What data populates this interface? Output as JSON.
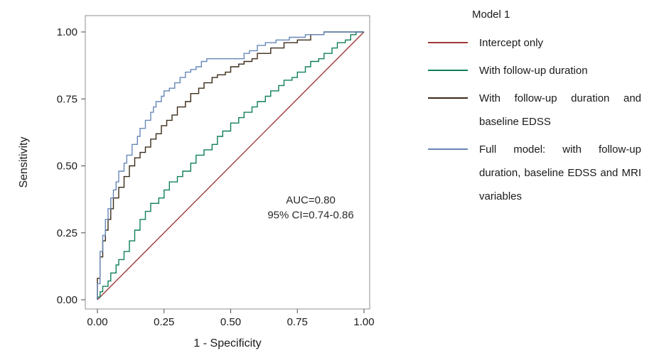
{
  "chart_data": {
    "type": "line",
    "title": "",
    "xlabel": "1 - Specificity",
    "ylabel": "Sensitivity",
    "xlim": [
      0,
      1
    ],
    "ylim": [
      0,
      1
    ],
    "grid": false,
    "legend_position": "right",
    "legend_title": "Model 1",
    "xtick_values": [
      0,
      0.25,
      0.5,
      0.75,
      1
    ],
    "xtick_labels": [
      "0.00",
      "0.25",
      "0.50",
      "0.75",
      "1.00"
    ],
    "ytick_values": [
      0,
      0.25,
      0.5,
      0.75,
      1
    ],
    "ytick_labels": [
      "0.00",
      "0.25",
      "0.50",
      "0.75",
      "1.00"
    ],
    "annotation": {
      "lines": [
        "AUC=0.80",
        "95% CI=0.74-0.86"
      ],
      "x": 0.8,
      "y": 0.36
    },
    "frame_color": "#8f8f8f",
    "tick_color": "#4a4a4a",
    "text_color": "#1a1a1a",
    "series": [
      {
        "name": "Intercept only",
        "color": "#9e3a38",
        "step": false,
        "points": [
          [
            0,
            0
          ],
          [
            1,
            1
          ]
        ]
      },
      {
        "name": "With follow-up duration",
        "color": "#0f7f5a",
        "step": true,
        "points": [
          [
            0,
            0
          ],
          [
            0.01,
            0.01
          ],
          [
            0.02,
            0.03
          ],
          [
            0.04,
            0.05
          ],
          [
            0.05,
            0.07
          ],
          [
            0.07,
            0.1
          ],
          [
            0.08,
            0.13
          ],
          [
            0.1,
            0.15
          ],
          [
            0.12,
            0.18
          ],
          [
            0.14,
            0.22
          ],
          [
            0.16,
            0.26
          ],
          [
            0.18,
            0.3
          ],
          [
            0.2,
            0.33
          ],
          [
            0.23,
            0.36
          ],
          [
            0.25,
            0.38
          ],
          [
            0.27,
            0.41
          ],
          [
            0.3,
            0.44
          ],
          [
            0.32,
            0.46
          ],
          [
            0.35,
            0.48
          ],
          [
            0.37,
            0.51
          ],
          [
            0.4,
            0.54
          ],
          [
            0.43,
            0.56
          ],
          [
            0.45,
            0.58
          ],
          [
            0.47,
            0.61
          ],
          [
            0.5,
            0.63
          ],
          [
            0.53,
            0.66
          ],
          [
            0.55,
            0.68
          ],
          [
            0.58,
            0.7
          ],
          [
            0.6,
            0.72
          ],
          [
            0.63,
            0.74
          ],
          [
            0.65,
            0.76
          ],
          [
            0.68,
            0.78
          ],
          [
            0.7,
            0.8
          ],
          [
            0.73,
            0.82
          ],
          [
            0.75,
            0.83
          ],
          [
            0.78,
            0.85
          ],
          [
            0.8,
            0.87
          ],
          [
            0.83,
            0.89
          ],
          [
            0.85,
            0.9
          ],
          [
            0.88,
            0.92
          ],
          [
            0.9,
            0.94
          ],
          [
            0.93,
            0.96
          ],
          [
            0.95,
            0.97
          ],
          [
            0.97,
            0.99
          ],
          [
            1,
            1
          ]
        ]
      },
      {
        "name": "With follow-up duration and baseline EDSS",
        "color": "#3a2a18",
        "step": true,
        "points": [
          [
            0,
            0
          ],
          [
            0.01,
            0.08
          ],
          [
            0.01,
            0.12
          ],
          [
            0.02,
            0.16
          ],
          [
            0.03,
            0.22
          ],
          [
            0.04,
            0.26
          ],
          [
            0.05,
            0.3
          ],
          [
            0.06,
            0.34
          ],
          [
            0.08,
            0.38
          ],
          [
            0.1,
            0.42
          ],
          [
            0.12,
            0.46
          ],
          [
            0.14,
            0.5
          ],
          [
            0.16,
            0.53
          ],
          [
            0.18,
            0.55
          ],
          [
            0.2,
            0.57
          ],
          [
            0.22,
            0.6
          ],
          [
            0.24,
            0.62
          ],
          [
            0.26,
            0.65
          ],
          [
            0.28,
            0.67
          ],
          [
            0.3,
            0.69
          ],
          [
            0.33,
            0.72
          ],
          [
            0.35,
            0.74
          ],
          [
            0.38,
            0.77
          ],
          [
            0.4,
            0.79
          ],
          [
            0.43,
            0.81
          ],
          [
            0.45,
            0.83
          ],
          [
            0.48,
            0.84
          ],
          [
            0.5,
            0.85
          ],
          [
            0.53,
            0.87
          ],
          [
            0.55,
            0.88
          ],
          [
            0.58,
            0.89
          ],
          [
            0.6,
            0.9
          ],
          [
            0.65,
            0.92
          ],
          [
            0.7,
            0.94
          ],
          [
            0.75,
            0.96
          ],
          [
            0.8,
            0.97
          ],
          [
            0.85,
            0.99
          ],
          [
            0.9,
            1.0
          ],
          [
            1,
            1
          ]
        ]
      },
      {
        "name": "Full model: with follow-up duration, baseline EDSS and MRI variables",
        "color": "#6787b8",
        "step": true,
        "points": [
          [
            0,
            0
          ],
          [
            0.01,
            0.06
          ],
          [
            0.01,
            0.12
          ],
          [
            0.02,
            0.18
          ],
          [
            0.03,
            0.24
          ],
          [
            0.04,
            0.3
          ],
          [
            0.05,
            0.34
          ],
          [
            0.06,
            0.38
          ],
          [
            0.07,
            0.41
          ],
          [
            0.08,
            0.44
          ],
          [
            0.1,
            0.48
          ],
          [
            0.11,
            0.51
          ],
          [
            0.13,
            0.54
          ],
          [
            0.15,
            0.58
          ],
          [
            0.16,
            0.61
          ],
          [
            0.18,
            0.64
          ],
          [
            0.2,
            0.67
          ],
          [
            0.21,
            0.7
          ],
          [
            0.22,
            0.72
          ],
          [
            0.24,
            0.74
          ],
          [
            0.25,
            0.76
          ],
          [
            0.27,
            0.78
          ],
          [
            0.29,
            0.79
          ],
          [
            0.31,
            0.81
          ],
          [
            0.33,
            0.83
          ],
          [
            0.35,
            0.85
          ],
          [
            0.37,
            0.86
          ],
          [
            0.39,
            0.87
          ],
          [
            0.41,
            0.89
          ],
          [
            0.43,
            0.9
          ],
          [
            0.55,
            0.9
          ],
          [
            0.57,
            0.92
          ],
          [
            0.6,
            0.93
          ],
          [
            0.63,
            0.95
          ],
          [
            0.67,
            0.96
          ],
          [
            0.72,
            0.97
          ],
          [
            0.78,
            0.98
          ],
          [
            0.85,
            0.99
          ],
          [
            0.9,
            1.0
          ],
          [
            1,
            1
          ]
        ]
      }
    ]
  }
}
